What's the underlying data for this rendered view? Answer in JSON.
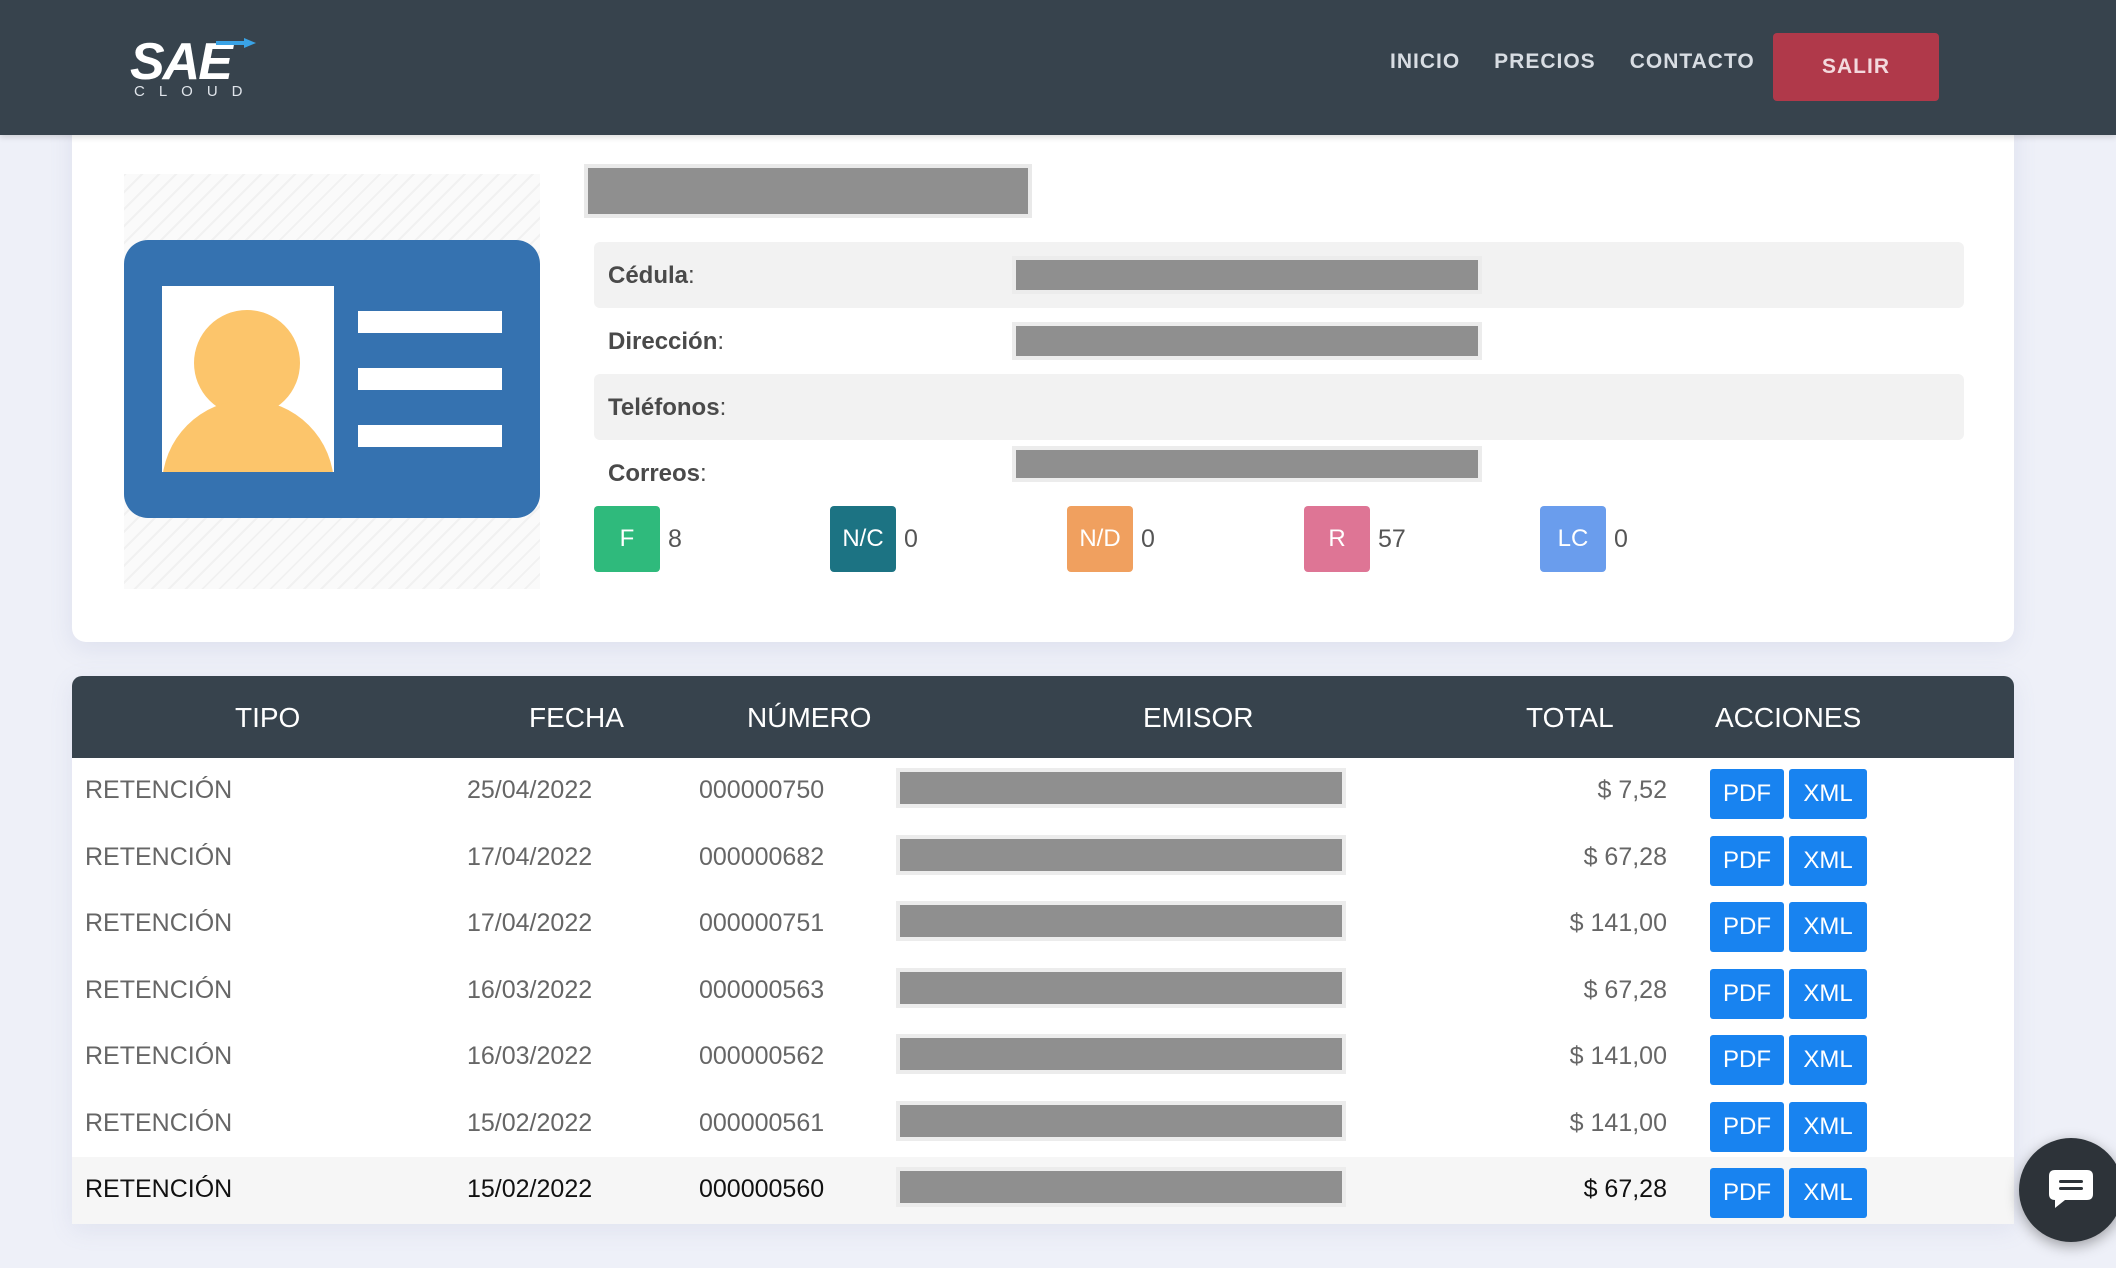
{
  "nav": {
    "logo_text": "SAE",
    "logo_sub": "CLOUD",
    "links": [
      "INICIO",
      "PRECIOS",
      "CONTACTO"
    ],
    "logout_label": "SALIR"
  },
  "profile": {
    "fields": [
      {
        "label": "Cédula",
        "suffix": ":"
      },
      {
        "label": "Dirección",
        "suffix": ":"
      },
      {
        "label": "Teléfonos",
        "suffix": ":"
      },
      {
        "label": "Correos",
        "suffix": ":"
      }
    ],
    "counters": [
      {
        "code": "F",
        "value": "8",
        "color": "#2fba7c"
      },
      {
        "code": "N/C",
        "value": "0",
        "color": "#1c7383"
      },
      {
        "code": "N/D",
        "value": "0",
        "color": "#f0a05f"
      },
      {
        "code": "R",
        "value": "57",
        "color": "#de7595"
      },
      {
        "code": "LC",
        "value": "0",
        "color": "#6a9ded"
      }
    ]
  },
  "table": {
    "headers": [
      "TIPO",
      "FECHA",
      "NÚMERO",
      "EMISOR",
      "TOTAL",
      "ACCIONES"
    ],
    "rows": [
      {
        "tipo": "RETENCIÓN",
        "fecha": "25/04/2022",
        "numero": "000000750",
        "total": "$ 7,52"
      },
      {
        "tipo": "RETENCIÓN",
        "fecha": "17/04/2022",
        "numero": "000000682",
        "total": "$ 67,28"
      },
      {
        "tipo": "RETENCIÓN",
        "fecha": "17/04/2022",
        "numero": "000000751",
        "total": "$ 141,00"
      },
      {
        "tipo": "RETENCIÓN",
        "fecha": "16/03/2022",
        "numero": "000000563",
        "total": "$ 67,28"
      },
      {
        "tipo": "RETENCIÓN",
        "fecha": "16/03/2022",
        "numero": "000000562",
        "total": "$ 141,00"
      },
      {
        "tipo": "RETENCIÓN",
        "fecha": "15/02/2022",
        "numero": "000000561",
        "total": "$ 141,00"
      },
      {
        "tipo": "RETENCIÓN",
        "fecha": "15/02/2022",
        "numero": "000000560",
        "total": "$ 67,28"
      }
    ],
    "pdf_label": "PDF",
    "xml_label": "XML"
  },
  "colors": {
    "navbar": "#37434d",
    "logout": "#b0394a",
    "action_button": "#1883f0",
    "id_card": "#3572b0",
    "id_person": "#fcc56b"
  },
  "icons": {
    "logo": "sae-cloud-logo",
    "profile": "id-card-icon",
    "chat": "chat-bubble-icon"
  }
}
